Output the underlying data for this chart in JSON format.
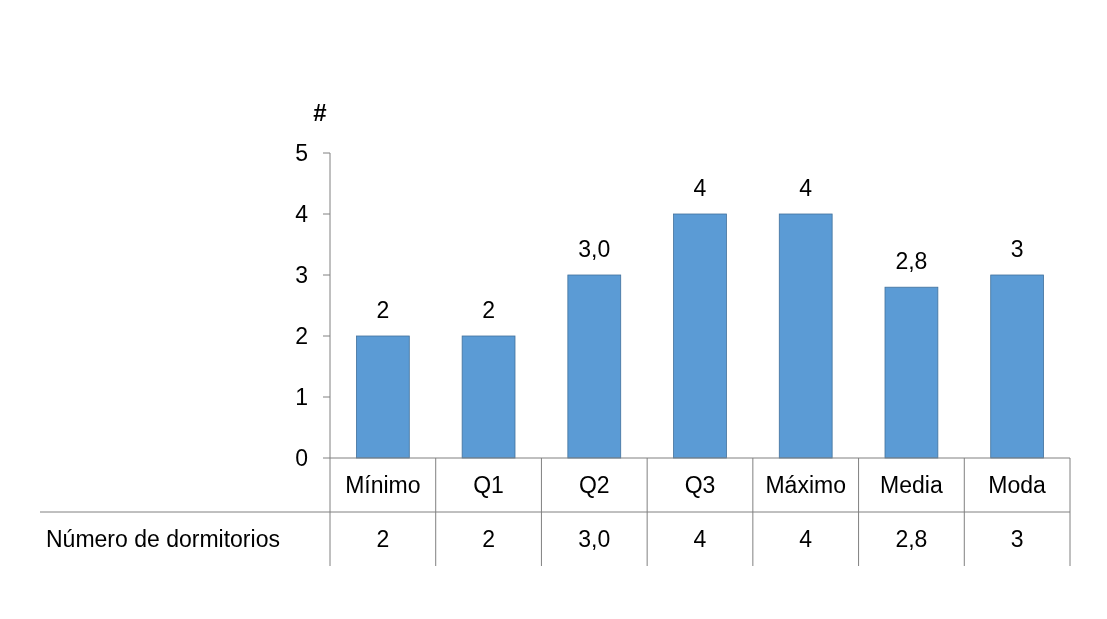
{
  "chart_data": {
    "type": "bar",
    "ylabel": "#",
    "categories": [
      "Mínimo",
      "Q1",
      "Q2",
      "Q3",
      "Máximo",
      "Media",
      "Moda"
    ],
    "series": [
      {
        "name": "Número de dormitorios",
        "color": "#5b9bd5",
        "values": [
          2,
          2,
          3.0,
          4,
          4,
          2.8,
          3
        ],
        "value_labels": [
          "2",
          "2",
          "3,0",
          "4",
          "4",
          "2,8",
          "3"
        ]
      }
    ],
    "ylim": [
      0,
      5
    ],
    "yticks": [
      0,
      1,
      2,
      3,
      4,
      5
    ],
    "grid": false
  }
}
